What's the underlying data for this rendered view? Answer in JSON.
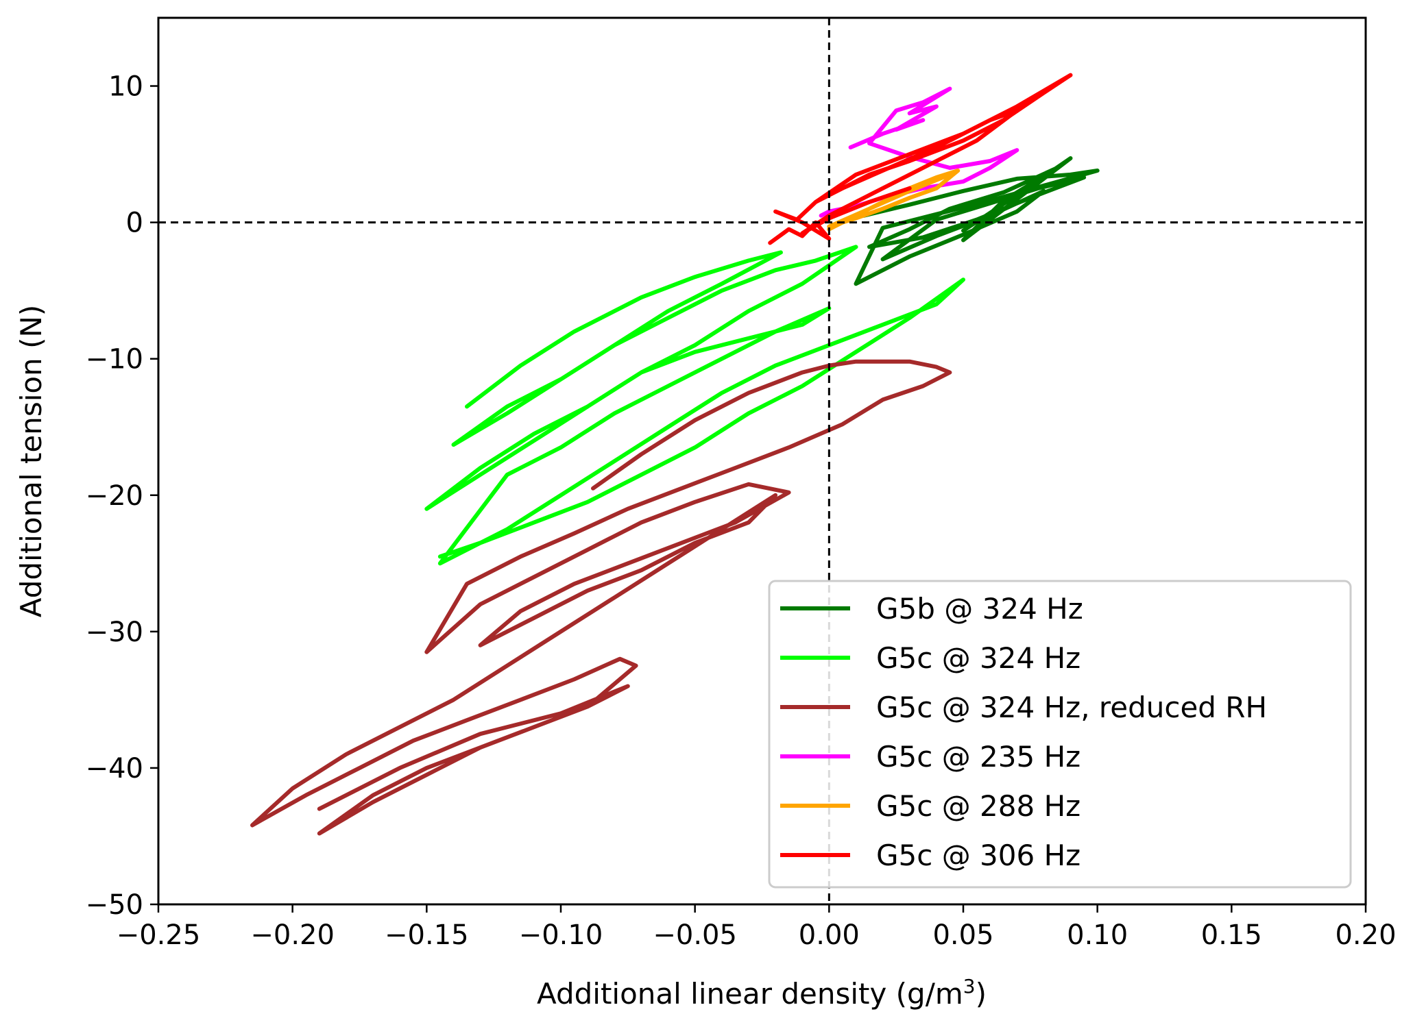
{
  "chart_data": {
    "type": "line",
    "title": "",
    "xlabel": "Additional linear density (g/m",
    "xlabel_sup": "3",
    "xlabel_end": ")",
    "ylabel": "Additional tension (N)",
    "xlim": [
      -0.25,
      0.2
    ],
    "ylim": [
      -50,
      15
    ],
    "xticks": [
      -0.25,
      -0.2,
      -0.15,
      -0.1,
      -0.05,
      0.0,
      0.05,
      0.1,
      0.15,
      0.2
    ],
    "xtick_labels": [
      "−0.25",
      "−0.20",
      "−0.15",
      "−0.10",
      "−0.05",
      "0.00",
      "0.05",
      "0.10",
      "0.15",
      "0.20"
    ],
    "yticks": [
      -50,
      -40,
      -30,
      -20,
      -10,
      0,
      10
    ],
    "ytick_labels": [
      "−50",
      "−40",
      "−30",
      "−20",
      "−10",
      "0",
      "10"
    ],
    "reference_lines": {
      "x": 0,
      "y": 0,
      "style": "dashed"
    },
    "legend_position": "lower-right",
    "series": [
      {
        "name": "G5b @ 324 Hz",
        "color": "#007a00",
        "x": [
          0.013,
          0.03,
          0.05,
          0.07,
          0.09,
          0.1,
          0.08,
          0.06,
          0.04,
          0.02,
          0.01,
          0.03,
          0.05,
          0.07,
          0.08,
          0.06,
          0.04,
          0.02,
          0.04,
          0.06,
          0.078,
          0.095,
          0.075,
          0.055,
          0.035,
          0.015,
          0.03,
          0.045,
          0.065,
          0.085,
          0.065,
          0.05,
          0.09,
          0.07,
          0.05
        ],
        "y": [
          0.5,
          1.3,
          2.3,
          3.2,
          3.5,
          3.8,
          2.7,
          1.6,
          0.6,
          -0.4,
          -4.5,
          -2.5,
          -0.9,
          0.8,
          2.3,
          0.5,
          -1.0,
          -2.7,
          0.2,
          1.4,
          2.5,
          3.3,
          1.8,
          0.2,
          -1.1,
          -1.8,
          -0.5,
          1.0,
          2.2,
          4.0,
          1.6,
          -1.3,
          4.7,
          2.0,
          -0.6
        ]
      },
      {
        "name": "G5c @ 324 Hz",
        "color": "#00ff00",
        "x": [
          -0.135,
          -0.115,
          -0.095,
          -0.07,
          -0.05,
          -0.03,
          -0.018,
          -0.04,
          -0.06,
          -0.08,
          -0.1,
          -0.12,
          -0.14,
          -0.12,
          -0.1,
          -0.08,
          -0.06,
          -0.04,
          -0.02,
          -0.005,
          0.01,
          -0.01,
          -0.03,
          -0.05,
          -0.07,
          -0.09,
          -0.11,
          -0.13,
          -0.15,
          -0.13,
          -0.11,
          -0.09,
          -0.07,
          -0.05,
          -0.03,
          -0.01,
          0.0,
          -0.02,
          -0.04,
          -0.06,
          -0.08,
          -0.1,
          -0.12,
          -0.145,
          -0.12,
          -0.1,
          -0.08,
          -0.06,
          -0.04,
          -0.02,
          0.0,
          0.02,
          0.04,
          0.05,
          0.03,
          0.01,
          -0.01,
          -0.03,
          -0.05,
          -0.07,
          -0.09,
          -0.11,
          -0.13,
          -0.145
        ],
        "y": [
          -13.5,
          -10.5,
          -8.0,
          -5.5,
          -4.0,
          -2.8,
          -2.2,
          -4.5,
          -6.5,
          -9.0,
          -11.5,
          -13.5,
          -16.3,
          -14.0,
          -11.5,
          -9.0,
          -7.0,
          -5.0,
          -3.5,
          -2.8,
          -1.8,
          -4.5,
          -6.5,
          -9.0,
          -11.0,
          -13.5,
          -15.5,
          -18.0,
          -21.0,
          -18.5,
          -16.0,
          -13.5,
          -11.0,
          -9.5,
          -8.5,
          -7.5,
          -6.3,
          -8.0,
          -10.0,
          -12.0,
          -14.0,
          -16.5,
          -18.5,
          -25.0,
          -22.5,
          -20.0,
          -17.5,
          -15.0,
          -12.5,
          -10.5,
          -9.0,
          -7.5,
          -6.0,
          -4.2,
          -7.0,
          -9.5,
          -12.0,
          -14.0,
          -16.5,
          -18.5,
          -20.5,
          -22.0,
          -23.5,
          -24.5
        ]
      },
      {
        "name": "G5c @ 324 Hz, reduced RH",
        "color": "#a52a2a",
        "x": [
          -0.088,
          -0.07,
          -0.05,
          -0.03,
          -0.01,
          0.0,
          0.01,
          0.03,
          0.04,
          0.045,
          0.035,
          0.02,
          0.005,
          -0.015,
          -0.035,
          -0.055,
          -0.075,
          -0.095,
          -0.115,
          -0.135,
          -0.15,
          -0.13,
          -0.11,
          -0.09,
          -0.07,
          -0.05,
          -0.03,
          -0.015,
          -0.035,
          -0.055,
          -0.075,
          -0.095,
          -0.115,
          -0.13,
          -0.11,
          -0.09,
          -0.07,
          -0.05,
          -0.03,
          -0.02,
          -0.04,
          -0.06,
          -0.08,
          -0.1,
          -0.12,
          -0.14,
          -0.16,
          -0.18,
          -0.2,
          -0.215,
          -0.195,
          -0.175,
          -0.155,
          -0.135,
          -0.115,
          -0.095,
          -0.078,
          -0.072,
          -0.09,
          -0.11,
          -0.13,
          -0.15,
          -0.17,
          -0.19,
          -0.17,
          -0.15,
          -0.13,
          -0.11,
          -0.09,
          -0.075,
          -0.1,
          -0.13,
          -0.16,
          -0.19
        ],
        "y": [
          -19.5,
          -17.0,
          -14.5,
          -12.5,
          -11.0,
          -10.5,
          -10.2,
          -10.2,
          -10.6,
          -11.0,
          -12.0,
          -13.0,
          -14.8,
          -16.5,
          -18.0,
          -19.5,
          -21.0,
          -22.8,
          -24.5,
          -26.5,
          -31.5,
          -28.0,
          -26.0,
          -24.0,
          -22.0,
          -20.5,
          -19.2,
          -19.8,
          -22.0,
          -23.5,
          -25.0,
          -26.5,
          -28.5,
          -31.0,
          -29.0,
          -27.0,
          -25.5,
          -23.5,
          -22.0,
          -20.0,
          -22.5,
          -25.0,
          -27.5,
          -30.0,
          -32.5,
          -35.0,
          -37.0,
          -39.0,
          -41.5,
          -44.2,
          -42.0,
          -40.0,
          -38.0,
          -36.5,
          -35.0,
          -33.5,
          -32.0,
          -32.5,
          -35.5,
          -37.0,
          -38.5,
          -40.0,
          -42.0,
          -44.8,
          -42.5,
          -40.5,
          -38.5,
          -37.0,
          -35.5,
          -34.0,
          -36.0,
          -37.5,
          -40.0,
          -43.0
        ]
      },
      {
        "name": "G5c @ 235 Hz",
        "color": "#ff00ff",
        "x": [
          0.008,
          0.02,
          0.035,
          0.025,
          0.04,
          0.03,
          0.045,
          0.035,
          0.025,
          0.015,
          0.03,
          0.045,
          0.06,
          0.07,
          0.06,
          0.05,
          0.035,
          0.02,
          0.01,
          0.0,
          -0.003
        ],
        "y": [
          5.5,
          6.5,
          7.5,
          6.8,
          8.5,
          8.0,
          9.8,
          8.8,
          8.2,
          5.8,
          4.8,
          4.0,
          4.5,
          5.3,
          4.0,
          3.0,
          2.5,
          1.8,
          1.2,
          0.8,
          0.5
        ]
      },
      {
        "name": "G5c @ 288 Hz",
        "color": "#ffa500",
        "x": [
          0.0,
          0.01,
          0.02,
          0.03,
          0.04,
          0.048,
          0.04,
          0.03,
          0.02,
          0.01,
          0.0,
          0.015,
          0.03,
          0.045
        ],
        "y": [
          -0.5,
          0.5,
          1.5,
          2.5,
          3.3,
          3.8,
          2.5,
          1.8,
          1.0,
          0.3,
          -0.3,
          1.0,
          2.3,
          3.5
        ]
      },
      {
        "name": "G5c @ 306 Hz",
        "color": "#ff0000",
        "x": [
          -0.022,
          -0.015,
          -0.01,
          -0.005,
          0.0,
          -0.01,
          -0.02,
          -0.012,
          -0.005,
          0.005,
          0.015,
          0.03,
          0.05,
          0.065,
          0.08,
          0.09,
          0.07,
          0.05,
          0.03,
          0.01,
          -0.005,
          0.005,
          0.02,
          0.04,
          0.06,
          0.07,
          0.055,
          0.035,
          0.015,
          0.0,
          -0.01,
          0.0,
          0.015,
          0.03
        ],
        "y": [
          -1.5,
          -0.5,
          -1.0,
          0.0,
          -1.2,
          0.0,
          0.8,
          0.2,
          1.5,
          2.5,
          3.5,
          4.5,
          6.0,
          7.5,
          9.5,
          10.8,
          8.5,
          6.5,
          5.0,
          3.5,
          1.5,
          2.5,
          3.8,
          5.5,
          7.5,
          8.2,
          6.0,
          4.0,
          2.0,
          0.5,
          -0.8,
          0.3,
          1.5,
          2.5
        ]
      }
    ]
  }
}
